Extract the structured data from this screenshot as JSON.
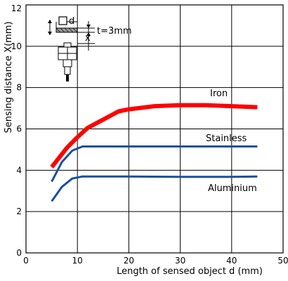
{
  "chart_data": {
    "type": "line",
    "xlabel": "Length of sensed object d (mm)",
    "ylabel": "Sensing distance X(mm)",
    "xlim": [
      0,
      50
    ],
    "ylim": [
      0,
      12
    ],
    "x_ticks": [
      "0",
      "10",
      "20",
      "30",
      "40",
      "50"
    ],
    "y_ticks": [
      "0",
      "2",
      "4",
      "6",
      "8",
      "10",
      "12"
    ],
    "grid": true,
    "series": [
      {
        "name": "Iron",
        "color": "#ff0000",
        "points": [
          [
            5,
            4.15
          ],
          [
            8,
            5.1
          ],
          [
            10,
            5.6
          ],
          [
            12,
            6.05
          ],
          [
            15,
            6.45
          ],
          [
            18,
            6.85
          ],
          [
            20,
            6.95
          ],
          [
            25,
            7.1
          ],
          [
            30,
            7.15
          ],
          [
            35,
            7.15
          ],
          [
            40,
            7.1
          ],
          [
            45,
            7.05
          ]
        ]
      },
      {
        "name": "Stainless",
        "color": "#1a4fa0",
        "points": [
          [
            5,
            3.45
          ],
          [
            7,
            4.4
          ],
          [
            9,
            4.95
          ],
          [
            11,
            5.15
          ],
          [
            15,
            5.15
          ],
          [
            25,
            5.15
          ],
          [
            35,
            5.15
          ],
          [
            45,
            5.15
          ]
        ]
      },
      {
        "name": "Aluminium",
        "color": "#1a4fa0",
        "points": [
          [
            5,
            2.5
          ],
          [
            7,
            3.2
          ],
          [
            9,
            3.6
          ],
          [
            11,
            3.7
          ],
          [
            20,
            3.7
          ],
          [
            30,
            3.68
          ],
          [
            40,
            3.68
          ],
          [
            45,
            3.7
          ]
        ]
      }
    ]
  },
  "inset": {
    "d_label": "d",
    "x_label": "x",
    "t_label": "t=3mm"
  }
}
